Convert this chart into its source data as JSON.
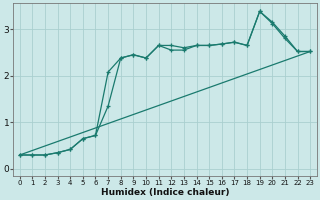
{
  "xlabel": "Humidex (Indice chaleur)",
  "bg_color": "#cce8e8",
  "grid_color": "#aacfcf",
  "line_color": "#1a7a6e",
  "xlim": [
    -0.5,
    23.5
  ],
  "ylim": [
    -0.15,
    3.55
  ],
  "yticks": [
    0,
    1,
    2,
    3
  ],
  "xticks": [
    0,
    1,
    2,
    3,
    4,
    5,
    6,
    7,
    8,
    9,
    10,
    11,
    12,
    13,
    14,
    15,
    16,
    17,
    18,
    19,
    20,
    21,
    22,
    23
  ],
  "line1_x": [
    0,
    1,
    2,
    3,
    4,
    5,
    6,
    7,
    8,
    9,
    10,
    11,
    12,
    13,
    14,
    15,
    16,
    17,
    18,
    19,
    20,
    21,
    22,
    23
  ],
  "line1_y": [
    0.3,
    0.3,
    0.3,
    0.35,
    0.42,
    0.65,
    0.72,
    2.08,
    2.38,
    2.45,
    2.38,
    2.65,
    2.65,
    2.6,
    2.65,
    2.65,
    2.68,
    2.72,
    2.65,
    3.38,
    3.15,
    2.85,
    2.52,
    2.52
  ],
  "line2_x": [
    0,
    1,
    2,
    3,
    4,
    5,
    6,
    7,
    8,
    9,
    10,
    11,
    12,
    13,
    14,
    15,
    16,
    17,
    18,
    19,
    20,
    21,
    22,
    23
  ],
  "line2_y": [
    0.3,
    0.3,
    0.3,
    0.35,
    0.42,
    0.65,
    0.72,
    1.35,
    2.38,
    2.45,
    2.38,
    2.65,
    2.55,
    2.55,
    2.65,
    2.65,
    2.68,
    2.72,
    2.65,
    3.38,
    3.12,
    2.8,
    2.52,
    2.52
  ],
  "line3_x": [
    0,
    23
  ],
  "line3_y": [
    0.3,
    2.52
  ]
}
